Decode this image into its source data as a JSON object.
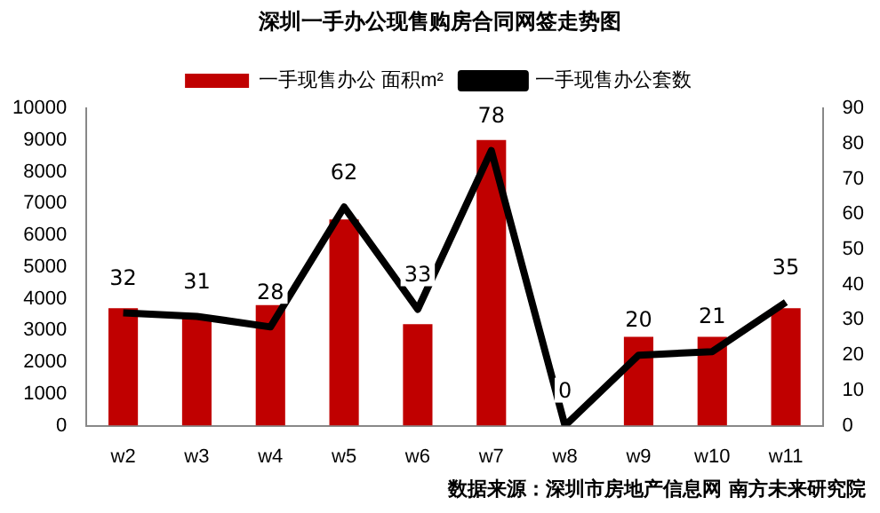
{
  "chart_data": {
    "type": "bar",
    "title": "深圳一手办公现售购房合同网签走势图",
    "categories": [
      "w2",
      "w3",
      "w4",
      "w5",
      "w6",
      "w7",
      "w8",
      "w9",
      "w10",
      "w11"
    ],
    "series": [
      {
        "name": "一手现售办公 面积m²",
        "color": "#c00000",
        "values": [
          3700,
          3400,
          3800,
          6500,
          3200,
          9000,
          0,
          2800,
          2800,
          3700
        ]
      },
      {
        "name": "一手现售办公套数",
        "type": "line",
        "axis": "y2",
        "color": "#000000",
        "values": [
          32,
          31,
          28,
          62,
          33,
          78,
          0,
          20,
          21,
          35
        ],
        "value_labels": [
          "32",
          "31",
          "28",
          "62",
          "33",
          "78",
          "0",
          "20",
          "21",
          "35"
        ]
      }
    ],
    "ylim": [
      0,
      10000
    ],
    "yticks": [
      0,
      1000,
      2000,
      3000,
      4000,
      5000,
      6000,
      7000,
      8000,
      9000,
      10000
    ],
    "y2lim": [
      0,
      90
    ],
    "y2ticks": [
      0,
      10,
      20,
      30,
      40,
      50,
      60,
      70,
      80,
      90
    ],
    "legend": "top",
    "grid": false,
    "marker": "none",
    "annotations": [
      "数据来源：深圳市房地产信息网 南方未来研究院"
    ]
  }
}
